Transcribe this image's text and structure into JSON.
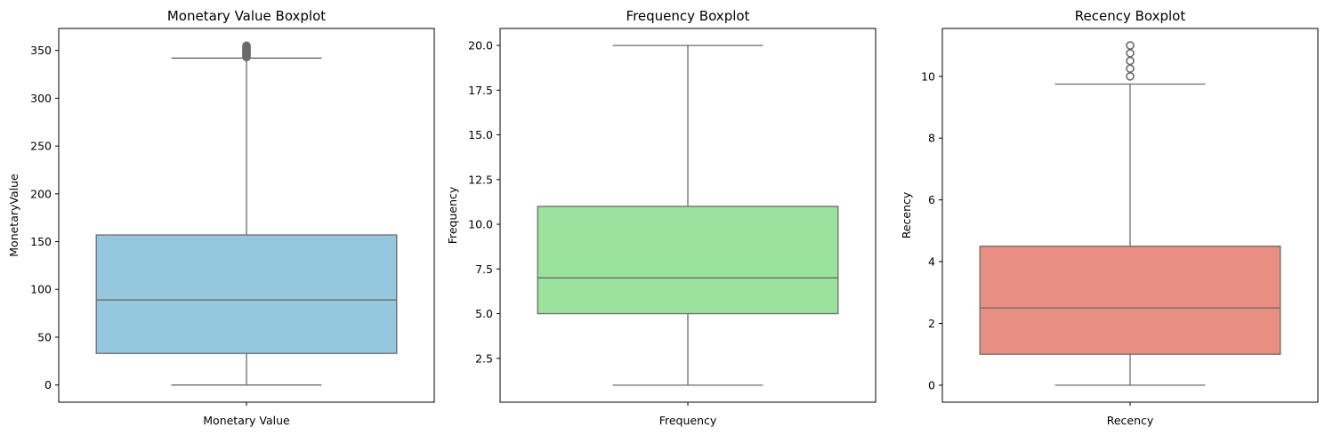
{
  "chart_data": [
    {
      "type": "box",
      "title": "Monetary Value Boxplot",
      "xlabel": "Monetary Value",
      "ylabel": "MonetaryValue",
      "ylim": [
        -18,
        373
      ],
      "yticks": [
        0,
        50,
        100,
        150,
        200,
        250,
        300,
        350
      ],
      "ytick_labels": [
        "0",
        "50",
        "100",
        "150",
        "200",
        "250",
        "300",
        "350"
      ],
      "color": "#95C8DF",
      "stats": {
        "whisker_low": 0,
        "q1": 33,
        "median": 89,
        "q3": 157,
        "whisker_high": 342
      },
      "outliers": [
        343,
        344,
        345,
        346,
        347,
        348,
        349,
        350,
        351,
        352,
        353,
        354,
        355
      ]
    },
    {
      "type": "box",
      "title": "Frequency Boxplot",
      "xlabel": "Frequency",
      "ylabel": "Frequency",
      "ylim": [
        0.05,
        20.95
      ],
      "yticks": [
        2.5,
        5.0,
        7.5,
        10.0,
        12.5,
        15.0,
        17.5,
        20.0
      ],
      "ytick_labels": [
        "2.5",
        "5.0",
        "7.5",
        "10.0",
        "12.5",
        "15.0",
        "17.5",
        "20.0"
      ],
      "color": "#9BE39D",
      "stats": {
        "whisker_low": 1,
        "q1": 5,
        "median": 7,
        "q3": 11,
        "whisker_high": 20
      },
      "outliers": []
    },
    {
      "type": "box",
      "title": "Recency Boxplot",
      "xlabel": "Recency",
      "ylabel": "Recency",
      "ylim": [
        -0.55,
        11.55
      ],
      "yticks": [
        0,
        2,
        4,
        6,
        8,
        10
      ],
      "ytick_labels": [
        "0",
        "2",
        "4",
        "6",
        "8",
        "10"
      ],
      "color": "#E88E82",
      "stats": {
        "whisker_low": 0,
        "q1": 1,
        "median": 2.5,
        "q3": 4.5,
        "whisker_high": 9.75
      },
      "outliers": [
        10,
        10.25,
        10.5,
        10.75,
        11
      ]
    }
  ]
}
